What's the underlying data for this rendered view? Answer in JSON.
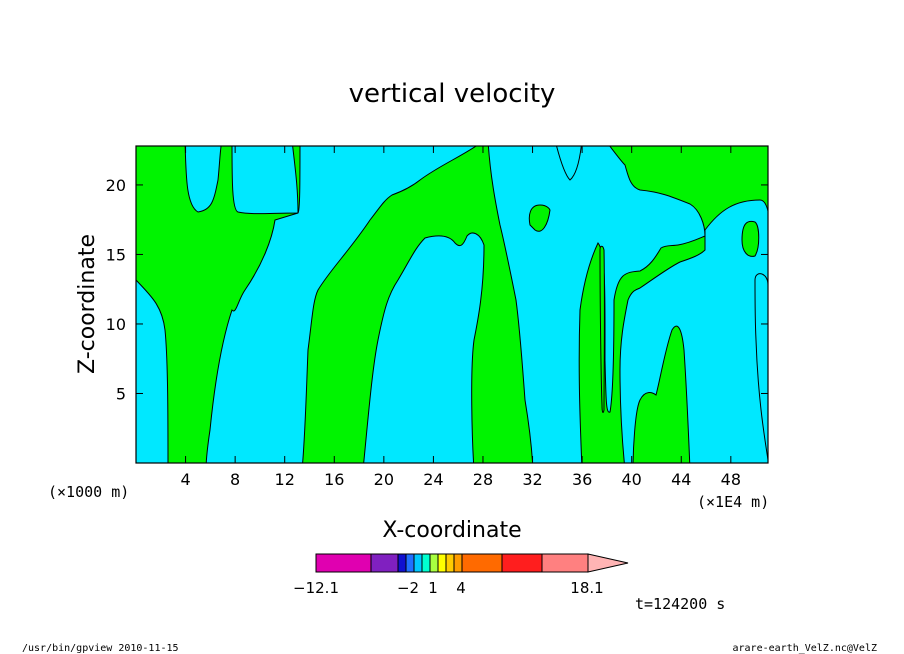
{
  "chart_data": {
    "type": "heatmap",
    "subtype": "filled-contour",
    "title": "vertical velocity",
    "xlabel": "X-coordinate",
    "ylabel": "Z-coordinate",
    "x_ticks": [
      4,
      8,
      12,
      16,
      20,
      24,
      28,
      32,
      36,
      40,
      44,
      48
    ],
    "y_ticks": [
      5,
      10,
      15,
      20
    ],
    "xlim": [
      0,
      51
    ],
    "ylim": [
      0,
      22.8
    ],
    "x_scale_left": "(×1000 m)",
    "x_scale_right": "(×1E4 m)",
    "colorbar": {
      "colors": [
        "#e000b0",
        "#8020c0",
        "#1010d0",
        "#2070ff",
        "#00c8ff",
        "#00ffd0",
        "#a8ff40",
        "#ffff00",
        "#ffcc00",
        "#ff9c00",
        "#ff6a00",
        "#ff1e1e",
        "#ff8080",
        "#ffb4b4"
      ],
      "labels": [
        "−12.1",
        "−2",
        "1",
        "4",
        "18.1"
      ],
      "extend": "max"
    },
    "fields": {
      "cyan_color": "#00e8ff",
      "green_color": "#00f400"
    },
    "time_label": "t=124200 s"
  },
  "footer": {
    "left": "/usr/bin/gpview   2010-11-15",
    "right": "arare-earth_VelZ.nc@VelZ"
  }
}
